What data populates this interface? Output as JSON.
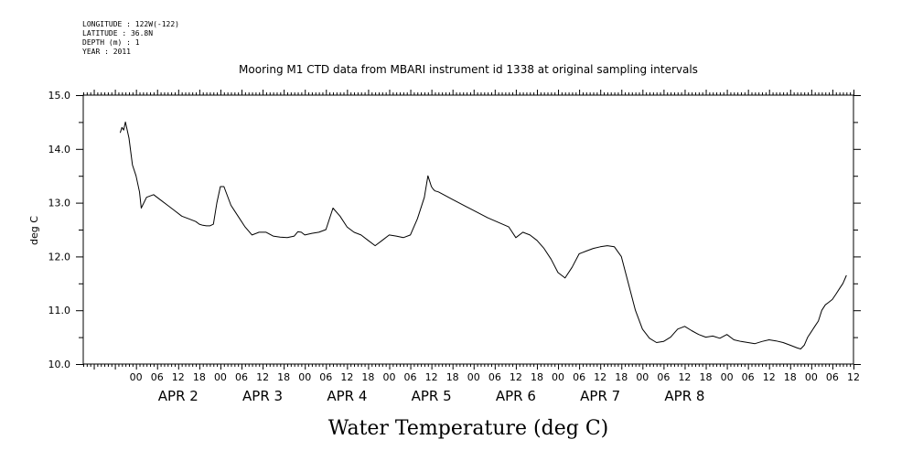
{
  "meta_lines": [
    "LONGITUDE : 122W(-122)",
    "LATITUDE : 36.8N",
    "DEPTH (m) : 1",
    "YEAR : 2011"
  ],
  "chart_data": {
    "type": "line",
    "title": "Mooring M1 CTD data from MBARI instrument id 1338 at original sampling intervals",
    "xlabel": "Water Temperature (deg C)",
    "ylabel": "deg C",
    "ylim": [
      10.0,
      15.0
    ],
    "y_ticks": [
      "10.0",
      "11.0",
      "12.0",
      "13.0",
      "14.0",
      "15.0"
    ],
    "x_unit": "hours since APR 2 00:00, 2011",
    "xlim": [
      -15,
      204
    ],
    "x_hour_labels": [
      "00",
      "06",
      "12",
      "18"
    ],
    "day_labels": [
      "APR  2",
      "APR  3",
      "APR  4",
      "APR  5",
      "APR  6",
      "APR  7",
      "APR  8"
    ],
    "grid": false,
    "series": [
      {
        "color": "#000000",
        "x": [
          -4.5,
          -4,
          -3.5,
          -3,
          -2,
          -1,
          0,
          1,
          1.5,
          3,
          5,
          7,
          9,
          11,
          13,
          15,
          17,
          18,
          19,
          20,
          21,
          22,
          23,
          24,
          25,
          27,
          29,
          31,
          33,
          35,
          37,
          39,
          41,
          43,
          45,
          46,
          47,
          48,
          50,
          52,
          54,
          56,
          58,
          60,
          62,
          64,
          66,
          68,
          70,
          72,
          74,
          76,
          78,
          80,
          82,
          83,
          84,
          84.5,
          85,
          86,
          90,
          95,
          100,
          106,
          108,
          110,
          112,
          114,
          116,
          118,
          120,
          122,
          124,
          126,
          128,
          130,
          132,
          134,
          136,
          138,
          140,
          142,
          144,
          146,
          148,
          150,
          152,
          154,
          156,
          158,
          160,
          162,
          164,
          166,
          168,
          170,
          172,
          174,
          176,
          178,
          180,
          182,
          184,
          186,
          188,
          189,
          190,
          191,
          192,
          193,
          194,
          194.5,
          195,
          196,
          197,
          198,
          199,
          200,
          201,
          202
        ],
        "y": [
          14.3,
          14.4,
          14.35,
          14.5,
          14.2,
          13.7,
          13.5,
          13.2,
          12.9,
          13.1,
          13.15,
          13.05,
          12.95,
          12.85,
          12.75,
          12.7,
          12.65,
          12.6,
          12.58,
          12.57,
          12.57,
          12.6,
          13.0,
          13.3,
          13.3,
          12.95,
          12.75,
          12.55,
          12.4,
          12.45,
          12.45,
          12.38,
          12.36,
          12.35,
          12.38,
          12.46,
          12.45,
          12.4,
          12.43,
          12.45,
          12.5,
          12.9,
          12.75,
          12.55,
          12.45,
          12.4,
          12.3,
          12.2,
          12.3,
          12.4,
          12.38,
          12.35,
          12.4,
          12.7,
          13.1,
          13.5,
          13.3,
          13.25,
          13.22,
          13.2,
          13.06,
          12.89,
          12.72,
          12.55,
          12.35,
          12.45,
          12.4,
          12.3,
          12.15,
          11.95,
          11.7,
          11.6,
          11.8,
          12.05,
          12.1,
          12.15,
          12.18,
          12.2,
          12.18,
          12.0,
          11.5,
          11.0,
          10.65,
          10.48,
          10.4,
          10.42,
          10.5,
          10.65,
          10.7,
          10.62,
          10.55,
          10.5,
          10.52,
          10.48,
          10.55,
          10.45,
          10.42,
          10.4,
          10.38,
          10.42,
          10.45,
          10.43,
          10.4,
          10.35,
          10.3,
          10.28,
          10.35,
          10.5,
          10.6,
          10.7,
          10.8,
          10.9,
          11.0,
          11.1,
          11.15,
          11.2,
          11.3,
          11.4,
          11.5,
          11.65
        ]
      }
    ]
  }
}
